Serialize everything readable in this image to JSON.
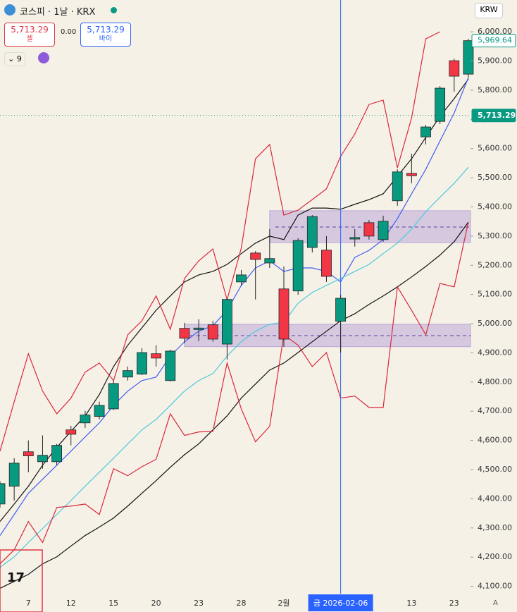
{
  "header": {
    "symbol": "코스피 · 1날 · KRX",
    "sell": {
      "price": "5,713.29",
      "label": "셀"
    },
    "spread": "0.00",
    "buy": {
      "price": "5,713.29",
      "label": "바이"
    },
    "indicators": "9"
  },
  "currency": "KRW",
  "scale_mode": "A",
  "chart_data": {
    "type": "candlestick",
    "up_color": "#089981",
    "down_color": "#f23645",
    "categories": [
      null,
      null,
      "7",
      null,
      null,
      "12",
      null,
      null,
      "15",
      null,
      null,
      "20",
      null,
      null,
      "23",
      null,
      null,
      "28",
      null,
      null,
      "2월",
      null,
      null,
      null,
      "금 2026-02-06",
      null,
      null,
      null,
      null,
      "13",
      null,
      null,
      "23",
      null
    ],
    "crosshair_index": 24,
    "open": [
      4382,
      4443,
      4561,
      4527,
      4527,
      4636,
      4660,
      4682,
      4708,
      4817,
      4827,
      4897,
      4805,
      4984,
      4980,
      4996,
      4930,
      5143,
      5242,
      5208,
      5119,
      5112,
      5261,
      5252,
      5008,
      5290,
      5346,
      5288,
      5421,
      5515,
      5640,
      5693,
      5901,
      5855
    ],
    "high": [
      4460,
      4539,
      4600,
      4617,
      4588,
      4650,
      4701,
      4733,
      4805,
      4853,
      4916,
      4926,
      4911,
      5003,
      5015,
      5010,
      5087,
      5184,
      5249,
      5324,
      5196,
      5293,
      5372,
      5300,
      5099,
      5324,
      5355,
      5370,
      5529,
      5582,
      5681,
      5814,
      5908,
      5976
    ],
    "low": [
      4370,
      4394,
      4491,
      4503,
      4515,
      4583,
      4643,
      4672,
      4704,
      4805,
      4824,
      4853,
      4802,
      4933,
      4940,
      4938,
      4877,
      5131,
      5083,
      5191,
      4921,
      5099,
      5244,
      5143,
      4901,
      5264,
      5288,
      5281,
      5404,
      5481,
      5614,
      5684,
      5795,
      5843
    ],
    "close": [
      4452,
      4522,
      4547,
      4549,
      4583,
      4621,
      4687,
      4720,
      4795,
      4839,
      4901,
      4882,
      4906,
      4950,
      4985,
      4947,
      5083,
      5167,
      5220,
      5223,
      4947,
      5285,
      5367,
      5162,
      5087,
      5295,
      5300,
      5351,
      5520,
      5507,
      5674,
      5807,
      5848,
      5969.64
    ],
    "lines": [
      {
        "color": "#111111",
        "values": [
          4322,
          4382,
          4443,
          4515,
          4576,
          4631,
          4684,
          4757,
          4853,
          4926,
          4986,
          5046,
          5095,
          5143,
          5167,
          5179,
          5203,
          5240,
          5276,
          5300,
          5288,
          5372,
          5396,
          5396,
          5392,
          5409,
          5425,
          5445,
          5505,
          5565,
          5638,
          5710,
          5771,
          5838
        ]
      },
      {
        "color": "#3f5ff0",
        "values": [
          4274,
          4346,
          4419,
          4467,
          4515,
          4563,
          4612,
          4660,
          4720,
          4769,
          4805,
          4817,
          4889,
          4938,
          4974,
          4993,
          5046,
          5131,
          5191,
          5215,
          5179,
          5191,
          5191,
          5179,
          5143,
          5227,
          5251,
          5288,
          5360,
          5445,
          5529,
          5626,
          5722,
          5843
        ]
      },
      {
        "color": "#4cc9dc",
        "values": [
          4165,
          4201,
          4250,
          4298,
          4346,
          4394,
          4443,
          4491,
          4539,
          4588,
          4636,
          4672,
          4720,
          4769,
          4805,
          4829,
          4889,
          4938,
          4974,
          4998,
          5005,
          5070,
          5107,
          5131,
          5155,
          5179,
          5203,
          5240,
          5276,
          5324,
          5384,
          5433,
          5481,
          5536
        ]
      },
      {
        "color": "#111111",
        "values": [
          4093,
          4117,
          4141,
          4177,
          4201,
          4238,
          4274,
          4303,
          4334,
          4375,
          4419,
          4462,
          4508,
          4551,
          4588,
          4636,
          4684,
          4745,
          4793,
          4841,
          4865,
          4901,
          4938,
          4974,
          5010,
          5034,
          5066,
          5095,
          5126,
          5160,
          5196,
          5235,
          5281,
          5348
        ]
      },
      {
        "color": "#d8283a",
        "values": [
          4563,
          4732,
          4897,
          4769,
          4691,
          4745,
          4834,
          4865,
          4805,
          4962,
          5010,
          5095,
          4981,
          5155,
          5215,
          5256,
          5082,
          5259,
          5565,
          5614,
          5372,
          5389,
          5425,
          5462,
          5573,
          5650,
          5751,
          5766,
          5534,
          5705,
          5976,
          6000,
          null,
          null
        ]
      },
      {
        "color": "#d8283a",
        "values": [
          4177,
          4225,
          4322,
          4250,
          4370,
          4375,
          4382,
          4346,
          4503,
          4479,
          4510,
          4535,
          4691,
          4617,
          4629,
          4631,
          4865,
          4708,
          4595,
          4648,
          4962,
          4926,
          4853,
          4901,
          4745,
          4752,
          4713,
          4713,
          5126,
          5046,
          4962,
          5138,
          5126,
          5348
        ]
      }
    ],
    "zones": [
      {
        "low": 5278,
        "high": 5387,
        "mid": 5331
      },
      {
        "low": 4921,
        "high": 4998,
        "mid": 4959
      }
    ],
    "zone_color": "#9c7fd0",
    "price_labels": [
      {
        "value": 5969.64,
        "label": "5,969.64",
        "style": "outline"
      },
      {
        "value": 5713.29,
        "label": "5,713.29",
        "style": "filled"
      }
    ],
    "ylim": [
      4012,
      6109
    ],
    "yticks": [
      {
        "value": 6000,
        "label": "6,000.00"
      },
      {
        "value": 5900,
        "label": "5,900.00"
      },
      {
        "value": 5800,
        "label": "5,800.00"
      },
      {
        "value": 5700,
        "label": "5,700.00"
      },
      {
        "value": 5600,
        "label": "5,600.00"
      },
      {
        "value": 5500,
        "label": "5,500.00"
      },
      {
        "value": 5400,
        "label": "5,400.00"
      },
      {
        "value": 5300,
        "label": "5,300.00"
      },
      {
        "value": 5200,
        "label": "5,200.00"
      },
      {
        "value": 5100,
        "label": "5,100.00"
      },
      {
        "value": 5000,
        "label": "5,000.00"
      },
      {
        "value": 4900,
        "label": "4,900.00"
      },
      {
        "value": 4800,
        "label": "4,800.00"
      },
      {
        "value": 4700,
        "label": "4,700.00"
      },
      {
        "value": 4600,
        "label": "4,600.00"
      },
      {
        "value": 4500,
        "label": "4,500.00"
      },
      {
        "value": 4400,
        "label": "4,400.00"
      },
      {
        "value": 4300,
        "label": "4,300.00"
      },
      {
        "value": 4200,
        "label": "4,200.00"
      },
      {
        "value": 4100,
        "label": "4,100.00"
      }
    ]
  }
}
